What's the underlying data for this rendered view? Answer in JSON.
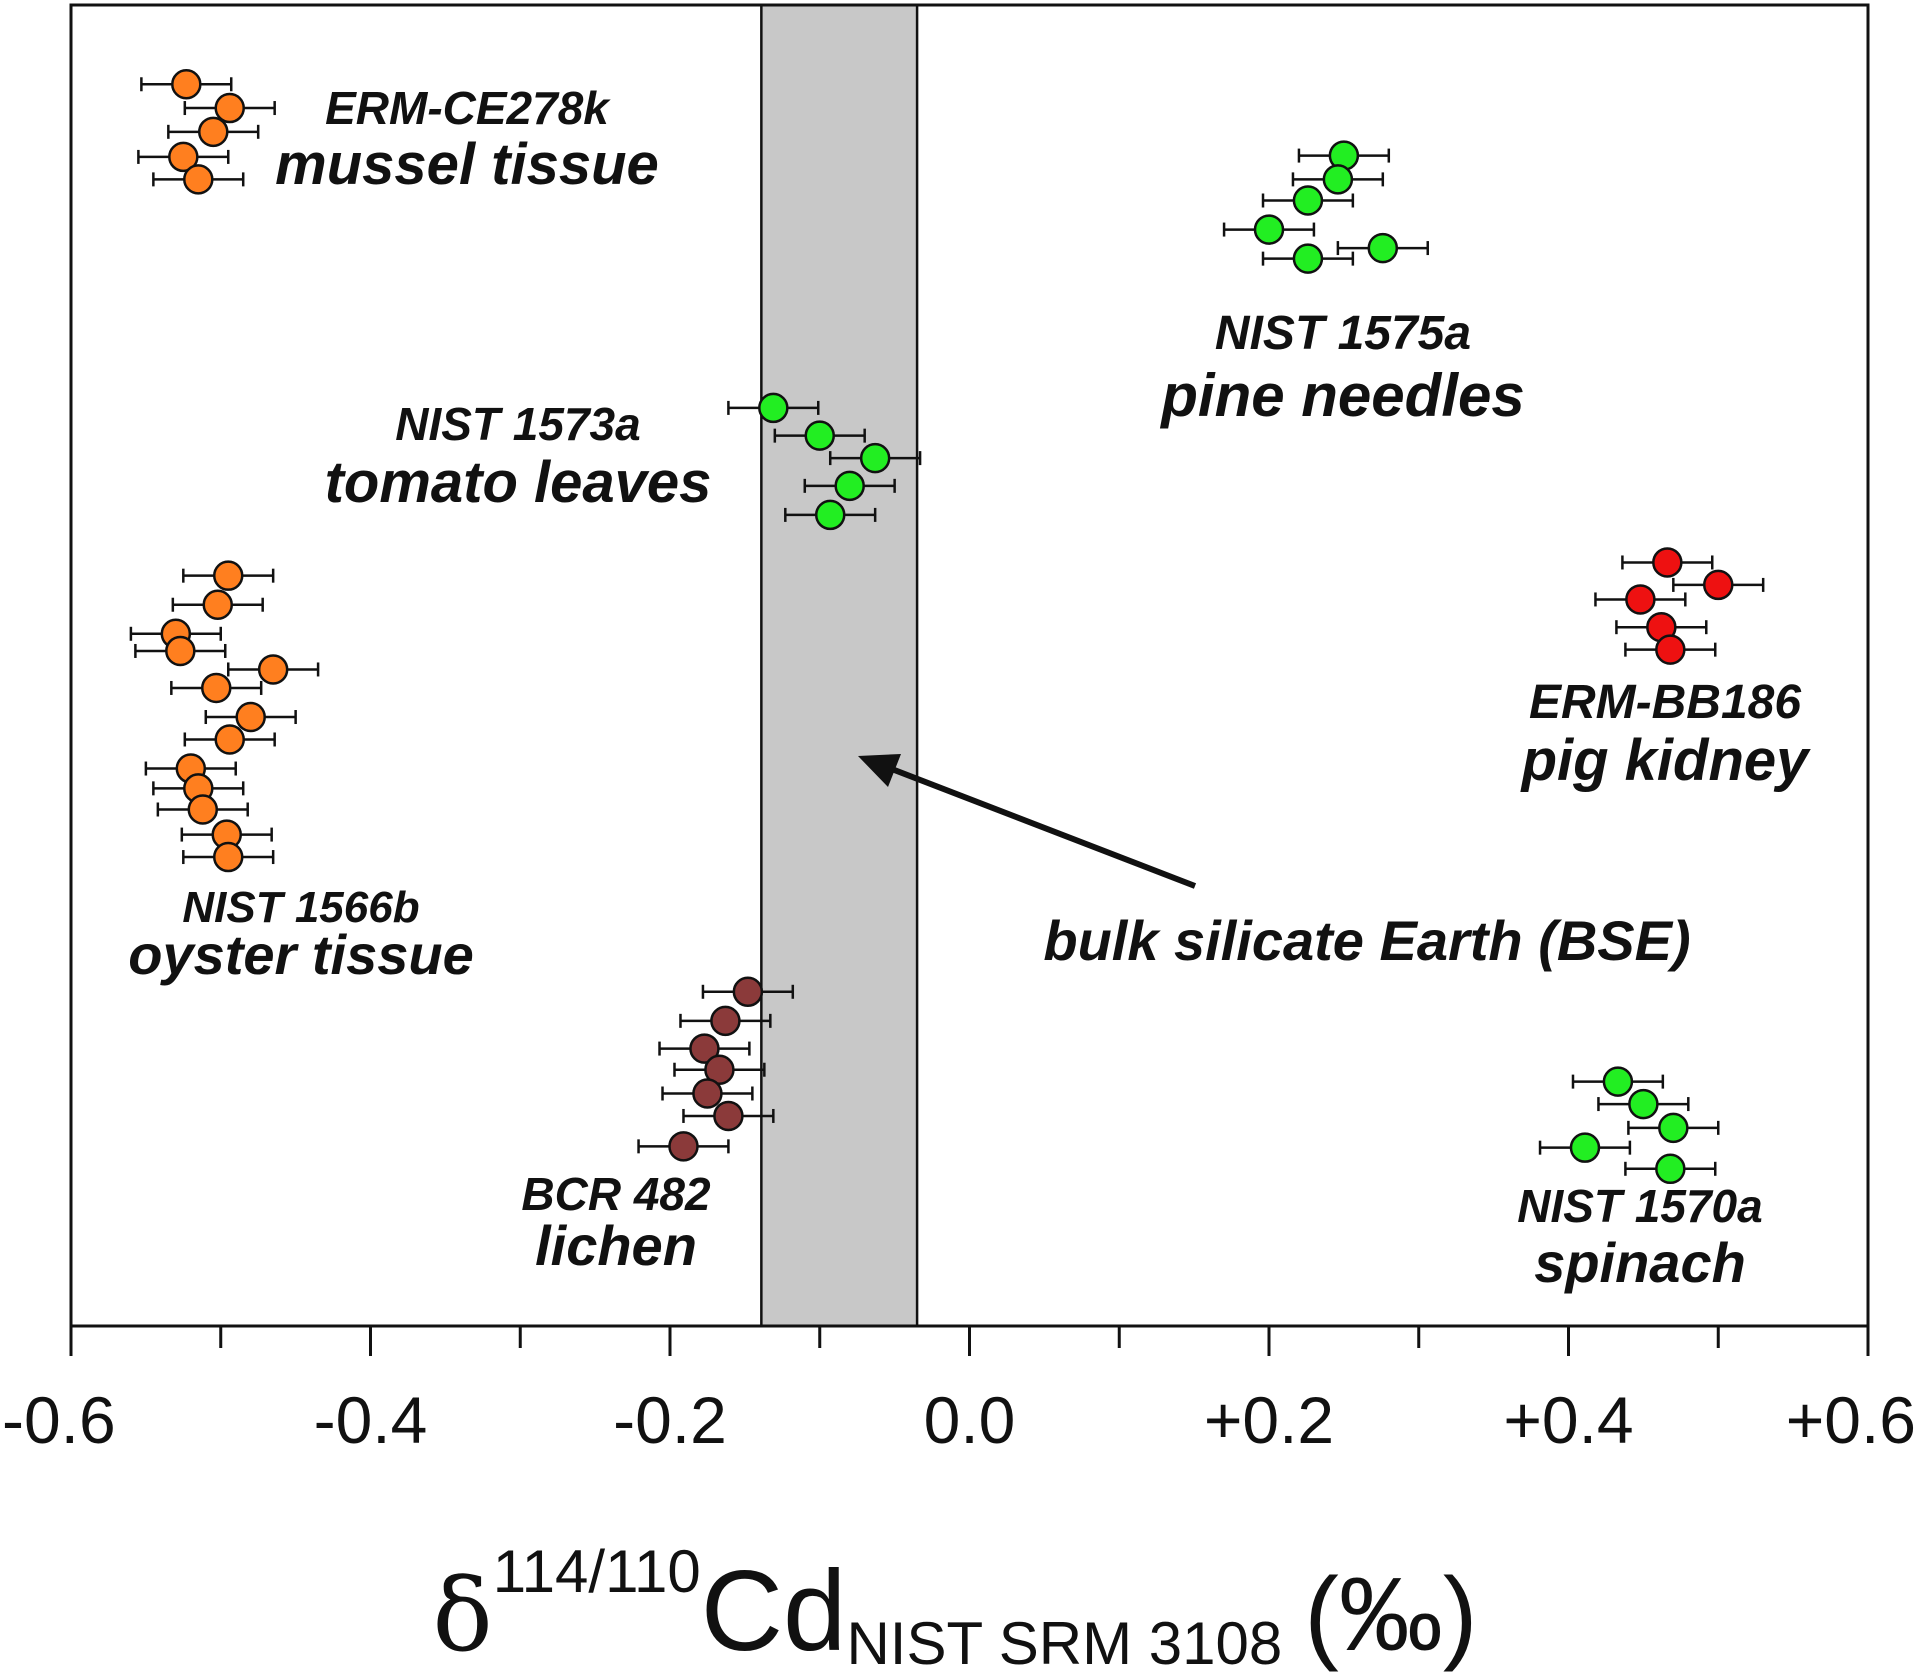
{
  "chart_data": {
    "type": "scatter",
    "xlim": [
      -0.6,
      0.6
    ],
    "x_ticks": [
      -0.6,
      -0.4,
      -0.2,
      0.0,
      0.2,
      0.4,
      0.6
    ],
    "x_tick_labels": [
      "-0.6",
      "-0.4",
      "-0.2",
      "0.0",
      "+0.2",
      "+0.4",
      "+0.6"
    ],
    "x_minor_tick_step": 0.1,
    "xlabel": {
      "symbol": "δ",
      "superscript": "114/110",
      "main": "Cd",
      "subscript": "NIST SRM 3108",
      "unit": "(‰)"
    },
    "ylabel": "",
    "y_axis_shown": false,
    "grid": false,
    "bse_band": {
      "xmin": -0.139,
      "xmax": -0.035,
      "label": "bulk silicate Earth (BSE)",
      "fill": "#c8c8c8"
    },
    "series": [
      {
        "label_lines": [
          "ERM-CE278k",
          "mussel tissue"
        ],
        "color": "#ff7f1f",
        "error": 0.03,
        "points": [
          {
            "x": -0.523,
            "y": 0.94
          },
          {
            "x": -0.494,
            "y": 0.922
          },
          {
            "x": -0.505,
            "y": 0.904
          },
          {
            "x": -0.525,
            "y": 0.885
          },
          {
            "x": -0.515,
            "y": 0.868
          }
        ]
      },
      {
        "label_lines": [
          "NIST 1575a",
          "pine needles"
        ],
        "color": "#22ee22",
        "error": 0.03,
        "points": [
          {
            "x": 0.25,
            "y": 0.886
          },
          {
            "x": 0.246,
            "y": 0.868
          },
          {
            "x": 0.226,
            "y": 0.852
          },
          {
            "x": 0.2,
            "y": 0.83
          },
          {
            "x": 0.276,
            "y": 0.816
          },
          {
            "x": 0.226,
            "y": 0.808
          }
        ]
      },
      {
        "label_lines": [
          "NIST 1573a",
          "tomato leaves"
        ],
        "color": "#22ee22",
        "error": 0.03,
        "points": [
          {
            "x": -0.131,
            "y": 0.695
          },
          {
            "x": -0.1,
            "y": 0.674
          },
          {
            "x": -0.063,
            "y": 0.657
          },
          {
            "x": -0.08,
            "y": 0.636
          },
          {
            "x": -0.093,
            "y": 0.614
          }
        ]
      },
      {
        "label_lines": [
          "ERM-BB186",
          "pig kidney"
        ],
        "color": "#ee1111",
        "error": 0.03,
        "points": [
          {
            "x": 0.466,
            "y": 0.578
          },
          {
            "x": 0.5,
            "y": 0.561
          },
          {
            "x": 0.448,
            "y": 0.55
          },
          {
            "x": 0.462,
            "y": 0.529
          },
          {
            "x": 0.468,
            "y": 0.512
          }
        ]
      },
      {
        "label_lines": [
          "NIST 1566b",
          "oyster tissue"
        ],
        "color": "#ff7f1f",
        "error": 0.03,
        "points": [
          {
            "x": -0.495,
            "y": 0.568
          },
          {
            "x": -0.502,
            "y": 0.546
          },
          {
            "x": -0.53,
            "y": 0.524
          },
          {
            "x": -0.527,
            "y": 0.511
          },
          {
            "x": -0.465,
            "y": 0.497
          },
          {
            "x": -0.503,
            "y": 0.483
          },
          {
            "x": -0.48,
            "y": 0.461
          },
          {
            "x": -0.494,
            "y": 0.444
          },
          {
            "x": -0.52,
            "y": 0.422
          },
          {
            "x": -0.515,
            "y": 0.407
          },
          {
            "x": -0.512,
            "y": 0.391
          },
          {
            "x": -0.496,
            "y": 0.372
          },
          {
            "x": -0.495,
            "y": 0.355
          }
        ]
      },
      {
        "label_lines": [
          "BCR 482",
          "lichen"
        ],
        "color": "#8b3a3a",
        "error": 0.03,
        "points": [
          {
            "x": -0.148,
            "y": 0.253
          },
          {
            "x": -0.163,
            "y": 0.231
          },
          {
            "x": -0.177,
            "y": 0.21
          },
          {
            "x": -0.167,
            "y": 0.194
          },
          {
            "x": -0.175,
            "y": 0.176
          },
          {
            "x": -0.161,
            "y": 0.159
          },
          {
            "x": -0.191,
            "y": 0.136
          }
        ]
      },
      {
        "label_lines": [
          "NIST 1570a",
          "spinach"
        ],
        "color": "#22ee22",
        "error": 0.03,
        "points": [
          {
            "x": 0.433,
            "y": 0.185
          },
          {
            "x": 0.45,
            "y": 0.168
          },
          {
            "x": 0.47,
            "y": 0.15
          },
          {
            "x": 0.411,
            "y": 0.135
          },
          {
            "x": 0.468,
            "y": 0.119
          }
        ]
      }
    ]
  }
}
